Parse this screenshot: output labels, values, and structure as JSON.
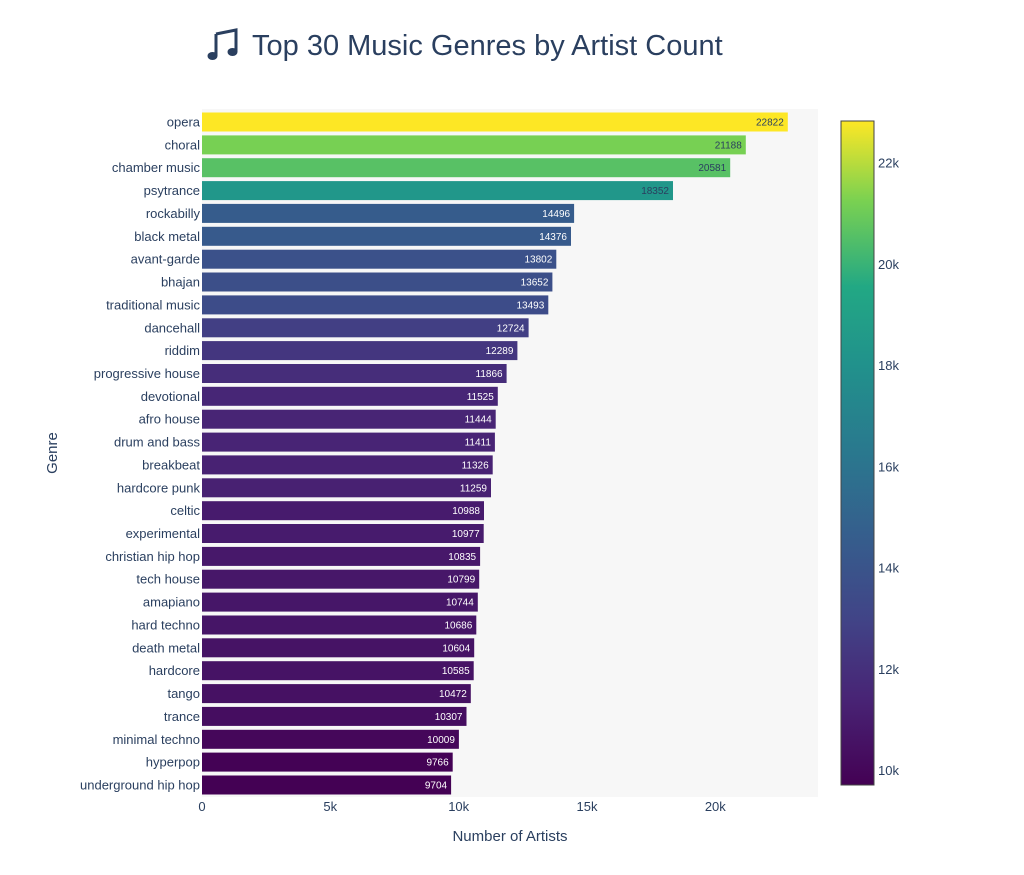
{
  "chart_data": {
    "type": "bar",
    "orientation": "horizontal",
    "title": "Top 30 Music Genres by Artist Count",
    "title_icon": "music-note-icon",
    "xlabel": "Number of Artists",
    "ylabel": "Genre",
    "xlim": [
      0,
      24000
    ],
    "x_ticks": [
      0,
      5000,
      10000,
      15000,
      20000
    ],
    "x_tick_labels": [
      "0",
      "5k",
      "10k",
      "15k",
      "20k"
    ],
    "colorscale": "viridis",
    "colorbar": {
      "range": [
        9704,
        22822
      ],
      "ticks": [
        10000,
        12000,
        14000,
        16000,
        18000,
        20000,
        22000
      ],
      "tick_labels": [
        "10k",
        "12k",
        "14k",
        "16k",
        "18k",
        "20k",
        "22k"
      ]
    },
    "categories": [
      "opera",
      "choral",
      "chamber music",
      "psytrance",
      "rockabilly",
      "black metal",
      "avant-garde",
      "bhajan",
      "traditional music",
      "dancehall",
      "riddim",
      "progressive house",
      "devotional",
      "afro house",
      "drum and bass",
      "breakbeat",
      "hardcore punk",
      "celtic",
      "experimental",
      "christian hip hop",
      "tech house",
      "amapiano",
      "hard techno",
      "death metal",
      "hardcore",
      "tango",
      "trance",
      "minimal techno",
      "hyperpop",
      "underground hip hop"
    ],
    "values": [
      22822,
      21188,
      20581,
      18352,
      14496,
      14376,
      13802,
      13652,
      13493,
      12724,
      12289,
      11866,
      11525,
      11444,
      11411,
      11326,
      11259,
      10988,
      10977,
      10835,
      10799,
      10744,
      10686,
      10604,
      10585,
      10472,
      10307,
      10009,
      9766,
      9704
    ]
  }
}
